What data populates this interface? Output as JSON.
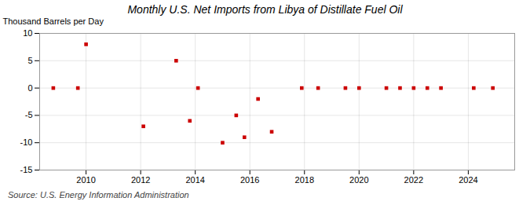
{
  "chart_data": {
    "type": "scatter",
    "title": "Monthly U.S. Net Imports from Libya of Distillate Fuel Oil",
    "ylabel": "Thousand Barrels per Day",
    "source": "Source: U.S. Energy Information Administration",
    "x": [
      2008.8,
      2009.7,
      2010.0,
      2012.1,
      2013.3,
      2013.8,
      2014.1,
      2015.0,
      2015.5,
      2015.8,
      2016.3,
      2016.8,
      2017.9,
      2018.5,
      2019.5,
      2020.0,
      2021.0,
      2021.5,
      2022.0,
      2022.5,
      2023.0,
      2024.2,
      2024.9
    ],
    "values": [
      0,
      0,
      8,
      -7,
      5,
      -6,
      0,
      -10,
      -5,
      -9,
      -2,
      -8,
      0,
      0,
      0,
      0,
      0,
      0,
      0,
      0,
      0,
      0,
      0
    ],
    "color": "#cc0000",
    "marker": "square",
    "xlim": [
      2008.3,
      2025.7
    ],
    "xticks": [
      2010,
      2012,
      2014,
      2016,
      2018,
      2020,
      2022,
      2024
    ],
    "ylim": [
      -15,
      10
    ],
    "yticks": [
      -15,
      -10,
      -5,
      0,
      5,
      10
    ],
    "grid": true
  }
}
